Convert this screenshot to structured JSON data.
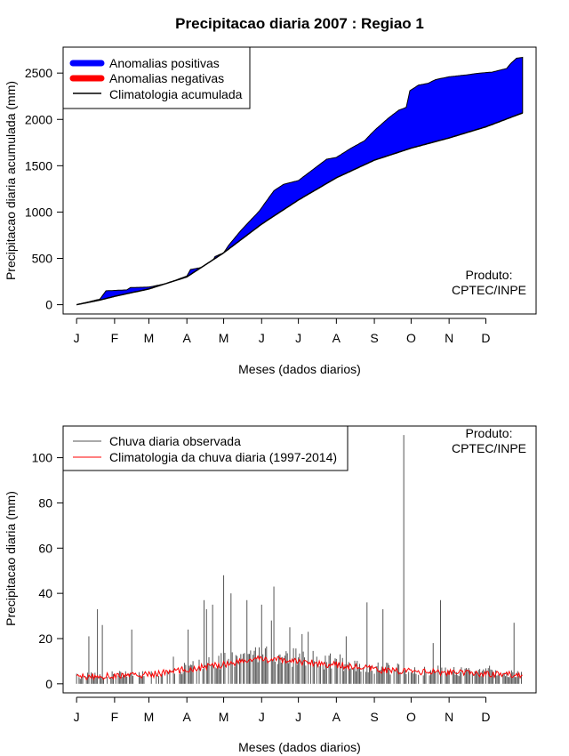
{
  "title": "Precipitacao diaria 2007 : Regiao 1",
  "chart_data": [
    {
      "type": "area",
      "ylabel": "Precipitacao diaria acumulada (mm)",
      "xlabel": "Meses (dados diarios)",
      "month_labels": [
        "J",
        "F",
        "M",
        "A",
        "M",
        "J",
        "J",
        "A",
        "S",
        "O",
        "N",
        "D"
      ],
      "yticks": [
        0,
        500,
        1000,
        1500,
        2000,
        2500
      ],
      "ylim": [
        -100,
        2780
      ],
      "xlim_days": [
        -10,
        376
      ],
      "annotation": [
        "Produto:",
        "CPTEC/INPE"
      ],
      "legend": [
        {
          "label": "Anomalias positivas",
          "color": "#0000ff"
        },
        {
          "label": "Anomalias negativas",
          "color": "#ff0000"
        },
        {
          "label": "Climatologia acumulada",
          "color": "#000000"
        }
      ],
      "series": [
        {
          "name": "Climatologia acumulada",
          "points": [
            [
              1,
              0
            ],
            [
              20,
              50
            ],
            [
              32,
              90
            ],
            [
              60,
              170
            ],
            [
              91,
              300
            ],
            [
              121,
              560
            ],
            [
              152,
              870
            ],
            [
              182,
              1130
            ],
            [
              213,
              1370
            ],
            [
              244,
              1560
            ],
            [
              274,
              1690
            ],
            [
              305,
              1800
            ],
            [
              335,
              1920
            ],
            [
              365,
              2070
            ]
          ]
        },
        {
          "name": "Observada acumulada",
          "points": [
            [
              1,
              0
            ],
            [
              20,
              60
            ],
            [
              25,
              150
            ],
            [
              42,
              160
            ],
            [
              45,
              185
            ],
            [
              60,
              190
            ],
            [
              75,
              230
            ],
            [
              91,
              310
            ],
            [
              94,
              380
            ],
            [
              110,
              420
            ],
            [
              114,
              520
            ],
            [
              121,
              560
            ],
            [
              125,
              640
            ],
            [
              135,
              800
            ],
            [
              150,
              1010
            ],
            [
              162,
              1230
            ],
            [
              170,
              1300
            ],
            [
              182,
              1340
            ],
            [
              195,
              1470
            ],
            [
              205,
              1570
            ],
            [
              213,
              1590
            ],
            [
              225,
              1690
            ],
            [
              236,
              1770
            ],
            [
              244,
              1880
            ],
            [
              256,
              2020
            ],
            [
              260,
              2060
            ],
            [
              264,
              2100
            ],
            [
              270,
              2130
            ],
            [
              273,
              2310
            ],
            [
              280,
              2370
            ],
            [
              288,
              2390
            ],
            [
              294,
              2430
            ],
            [
              305,
              2460
            ],
            [
              319,
              2480
            ],
            [
              330,
              2500
            ],
            [
              340,
              2510
            ],
            [
              352,
              2550
            ],
            [
              355,
              2600
            ],
            [
              360,
              2660
            ],
            [
              365,
              2670
            ]
          ]
        }
      ]
    },
    {
      "type": "bar",
      "ylabel": "Precipitacao diaria (mm)",
      "xlabel": "Meses (dados diarios)",
      "month_labels": [
        "J",
        "F",
        "M",
        "A",
        "M",
        "J",
        "J",
        "A",
        "S",
        "O",
        "N",
        "D"
      ],
      "yticks": [
        0,
        20,
        40,
        60,
        80,
        100
      ],
      "ylim": [
        -4,
        114
      ],
      "xlim_days": [
        -10,
        376
      ],
      "annotation": [
        "Produto:",
        "CPTEC/INPE"
      ],
      "legend": [
        {
          "label": "Chuva diaria observada",
          "color": "#555555"
        },
        {
          "label": "Climatologia da chuva diaria (1997-2014)",
          "color": "#ff0000"
        }
      ],
      "highlights": [
        {
          "day": 18,
          "value": 33
        },
        {
          "day": 11,
          "value": 21
        },
        {
          "day": 22,
          "value": 26
        },
        {
          "day": 46,
          "value": 24
        },
        {
          "day": 80,
          "value": 12
        },
        {
          "day": 92,
          "value": 24
        },
        {
          "day": 105,
          "value": 37
        },
        {
          "day": 107,
          "value": 33
        },
        {
          "day": 112,
          "value": 35
        },
        {
          "day": 121,
          "value": 48
        },
        {
          "day": 127,
          "value": 40
        },
        {
          "day": 140,
          "value": 37
        },
        {
          "day": 152,
          "value": 35
        },
        {
          "day": 160,
          "value": 28
        },
        {
          "day": 162,
          "value": 43
        },
        {
          "day": 175,
          "value": 25
        },
        {
          "day": 185,
          "value": 22
        },
        {
          "day": 190,
          "value": 23
        },
        {
          "day": 221,
          "value": 21
        },
        {
          "day": 238,
          "value": 36
        },
        {
          "day": 251,
          "value": 33
        },
        {
          "day": 268,
          "value": 110
        },
        {
          "day": 292,
          "value": 18
        },
        {
          "day": 298,
          "value": 37
        },
        {
          "day": 338,
          "value": 8
        },
        {
          "day": 358,
          "value": 27
        }
      ],
      "clim_profile": [
        [
          1,
          3
        ],
        [
          60,
          4
        ],
        [
          100,
          7
        ],
        [
          150,
          11
        ],
        [
          180,
          10
        ],
        [
          220,
          8
        ],
        [
          250,
          6
        ],
        [
          300,
          5
        ],
        [
          365,
          4
        ]
      ]
    }
  ]
}
